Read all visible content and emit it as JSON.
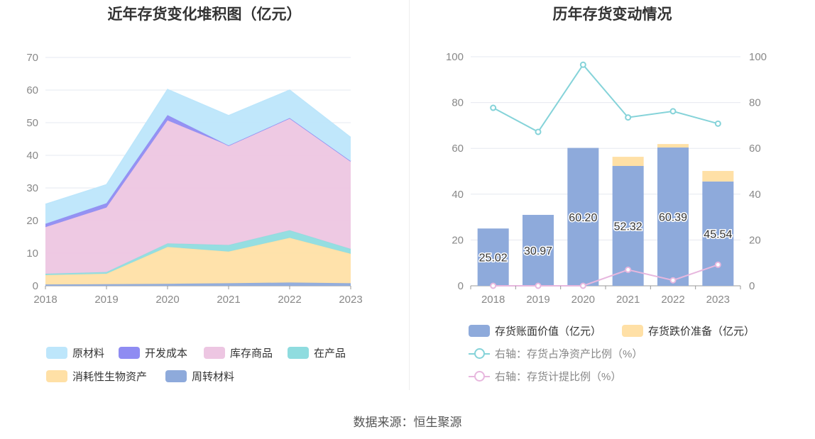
{
  "charts": [
    {
      "title": "近年存货变化堆积图（亿元）"
    },
    {
      "title": "历年存货变动情况"
    }
  ],
  "source": "数据来源：恒生聚源",
  "chart_data": [
    {
      "type": "area",
      "stacked": true,
      "title": "近年存货变化堆积图（亿元）",
      "x": [
        "2018",
        "2019",
        "2020",
        "2021",
        "2022",
        "2023"
      ],
      "ylim": [
        0,
        70
      ],
      "yticks": [
        0,
        10,
        20,
        30,
        40,
        50,
        60,
        70
      ],
      "grid": true,
      "legend_position": "bottom",
      "series": [
        {
          "name": "周转材料",
          "color": "#8eaadb",
          "values": [
            0.4,
            0.5,
            0.6,
            0.8,
            1.0,
            0.8
          ]
        },
        {
          "name": "消耗性生物资产",
          "color": "#ffe0a6",
          "values": [
            2.9,
            3.2,
            11.3,
            9.7,
            13.7,
            9.0
          ]
        },
        {
          "name": "在产品",
          "color": "#8fdcdf",
          "values": [
            0.4,
            0.5,
            1.1,
            2.0,
            2.3,
            1.5
          ]
        },
        {
          "name": "库存商品",
          "color": "#edc6e2",
          "values": [
            14.3,
            19.8,
            37.7,
            30.5,
            34.4,
            26.9
          ]
        },
        {
          "name": "开发成本",
          "color": "#8f8cf2",
          "values": [
            1.0,
            1.3,
            1.6,
            0,
            0,
            0
          ]
        },
        {
          "name": "原材料",
          "color": "#bde6fb",
          "values": [
            6.0,
            5.7,
            7.9,
            9.2,
            8.6,
            7.3
          ]
        }
      ],
      "legend_order": [
        "原材料",
        "开发成本",
        "库存商品",
        "在产品",
        "消耗性生物资产",
        "周转材料"
      ]
    },
    {
      "type": "bar",
      "stacked": true,
      "title": "历年存货变动情况",
      "categories": [
        "2018",
        "2019",
        "2020",
        "2021",
        "2022",
        "2023"
      ],
      "ylim": [
        0,
        100
      ],
      "y2lim": [
        0,
        100
      ],
      "yticks": [
        0,
        20,
        40,
        60,
        80,
        100
      ],
      "grid": true,
      "legend_position": "bottom",
      "series": [
        {
          "name": "存货账面价值（亿元）",
          "kind": "bar",
          "color": "#8eaadb",
          "values": [
            25.02,
            30.97,
            60.2,
            52.32,
            60.39,
            45.54
          ],
          "labels": [
            "25.02",
            "30.97",
            "60.20",
            "52.32",
            "60.39",
            "45.54"
          ]
        },
        {
          "name": "存货跌价准备（亿元）",
          "kind": "bar",
          "color": "#ffe0a6",
          "values": [
            0,
            0,
            0,
            4.0,
            1.5,
            4.6
          ]
        },
        {
          "name": "右轴：存货占净资产比例（%）",
          "kind": "line",
          "axis": "right",
          "color": "#85d3d9",
          "values": [
            77.7,
            67.2,
            96.5,
            73.5,
            76.2,
            70.8
          ]
        },
        {
          "name": "右轴：存货计提比例（%）",
          "kind": "line",
          "axis": "right",
          "color": "#e7b7de",
          "values": [
            0,
            0,
            0,
            7.0,
            2.4,
            9.2
          ]
        }
      ]
    }
  ]
}
